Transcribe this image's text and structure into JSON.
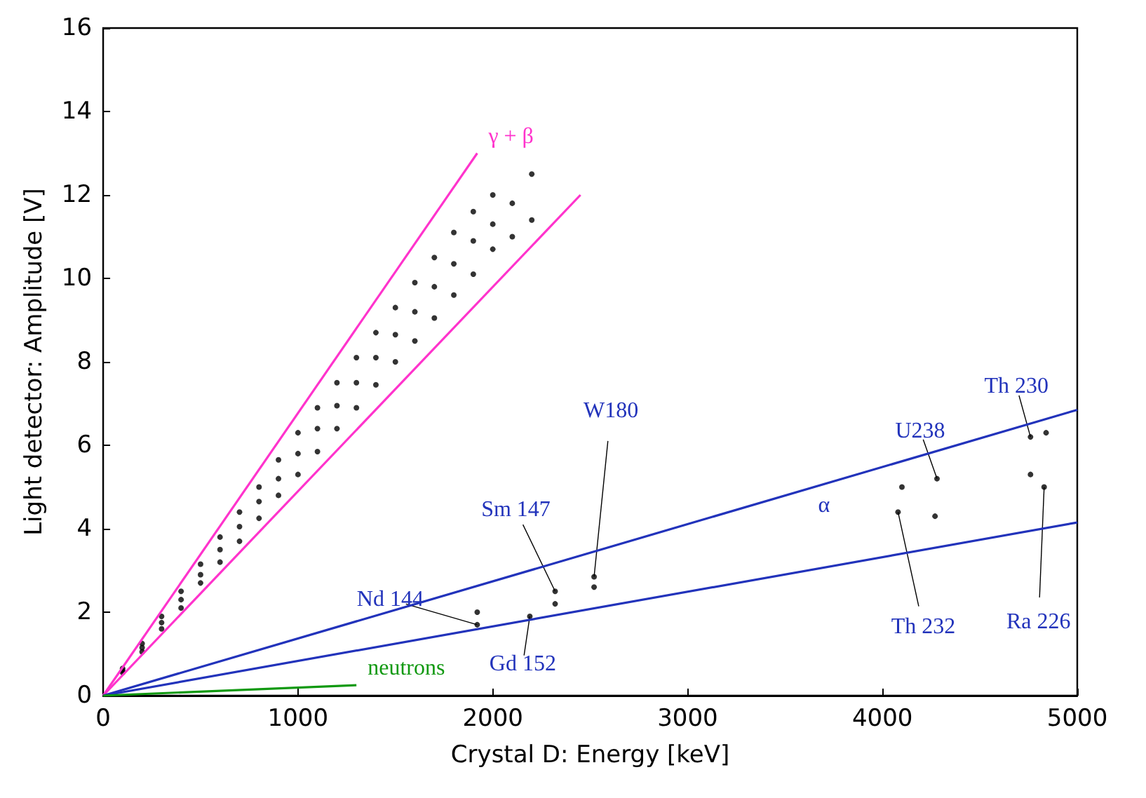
{
  "chart_data": {
    "type": "scatter",
    "xlabel": "Crystal D: Energy [keV]",
    "ylabel": "Light detector: Amplitude [V]",
    "xlim": [
      0,
      5000
    ],
    "xticks": [
      0,
      1000,
      2000,
      3000,
      4000,
      5000
    ],
    "ylim": [
      0,
      16
    ],
    "yticks": [
      0,
      2,
      4,
      6,
      8,
      10,
      12,
      14,
      16
    ],
    "grid": false,
    "legend": false,
    "series": [
      {
        "color": "#000000",
        "x": [
          100,
          100,
          100,
          200,
          200,
          200,
          300,
          300,
          300,
          400,
          400,
          400,
          500,
          500,
          500,
          600,
          600,
          600,
          700,
          700,
          700,
          800,
          800,
          800,
          900,
          900,
          900,
          1000,
          1000,
          1000,
          1100,
          1100,
          1100,
          1200,
          1200,
          1200,
          1300,
          1300,
          1300,
          1400,
          1400,
          1400,
          1500,
          1500,
          1500,
          1600,
          1600,
          1600,
          1700,
          1700,
          1700,
          1800,
          1800,
          1800,
          1900,
          1900,
          1900,
          2000,
          2000,
          2000,
          2100,
          2100,
          2200,
          2200,
          1920,
          1920,
          2190,
          2320,
          2320,
          2520,
          2520,
          4080,
          4100,
          4270,
          4280,
          4760,
          4760,
          4830,
          4840
        ],
        "values": [
          0.55,
          0.6,
          0.65,
          1.05,
          1.15,
          1.25,
          1.6,
          1.75,
          1.9,
          2.1,
          2.3,
          2.5,
          2.7,
          2.9,
          3.15,
          3.2,
          3.5,
          3.8,
          3.7,
          4.05,
          4.4,
          4.25,
          4.65,
          5.0,
          4.8,
          5.2,
          5.65,
          5.3,
          5.8,
          6.3,
          5.85,
          6.4,
          6.9,
          6.4,
          6.95,
          7.5,
          6.9,
          7.5,
          8.1,
          7.45,
          8.1,
          8.7,
          8.0,
          8.65,
          9.3,
          8.5,
          9.2,
          9.9,
          9.05,
          9.8,
          10.5,
          9.6,
          10.35,
          11.1,
          10.1,
          10.9,
          11.6,
          10.7,
          11.3,
          12.0,
          11.0,
          11.8,
          11.4,
          12.5,
          1.7,
          2.0,
          1.9,
          2.2,
          2.5,
          2.6,
          2.85,
          4.4,
          5.0,
          4.3,
          5.2,
          5.3,
          6.2,
          5.0,
          6.3
        ]
      },
      {
        "type": "line",
        "name": "γ + β",
        "color": "#ff33cc",
        "x": [
          0,
          1920
        ],
        "values": [
          0,
          13
        ]
      },
      {
        "type": "line",
        "color": "#ff33cc",
        "x": [
          0,
          2450
        ],
        "values": [
          0,
          12
        ]
      },
      {
        "type": "line",
        "color": "#2233bb",
        "x": [
          0,
          5000
        ],
        "values": [
          0,
          6.85
        ]
      },
      {
        "type": "line",
        "color": "#2233bb",
        "x": [
          0,
          5000
        ],
        "values": [
          0,
          4.15
        ]
      },
      {
        "type": "line",
        "name": "neutrons",
        "color": "#119911",
        "x": [
          0,
          1300
        ],
        "values": [
          0,
          0.25
        ]
      }
    ],
    "annotations": [
      {
        "text": "Nd 144",
        "x": 1920,
        "y": 1.7
      },
      {
        "text": "Gd 152",
        "x": 2190,
        "y": 1.9
      },
      {
        "text": "Sm 147",
        "x": 2320,
        "y": 2.5
      },
      {
        "text": "W180",
        "x": 2520,
        "y": 2.85
      },
      {
        "text": "α",
        "x": 3700,
        "y": 3.07
      },
      {
        "text": "Th 232",
        "x": 4080,
        "y": 4.4
      },
      {
        "text": "U238",
        "x": 4280,
        "y": 5.2
      },
      {
        "text": "Th 230",
        "x": 4760,
        "y": 6.2
      },
      {
        "text": "Ra 226",
        "x": 4830,
        "y": 5.0
      }
    ]
  }
}
